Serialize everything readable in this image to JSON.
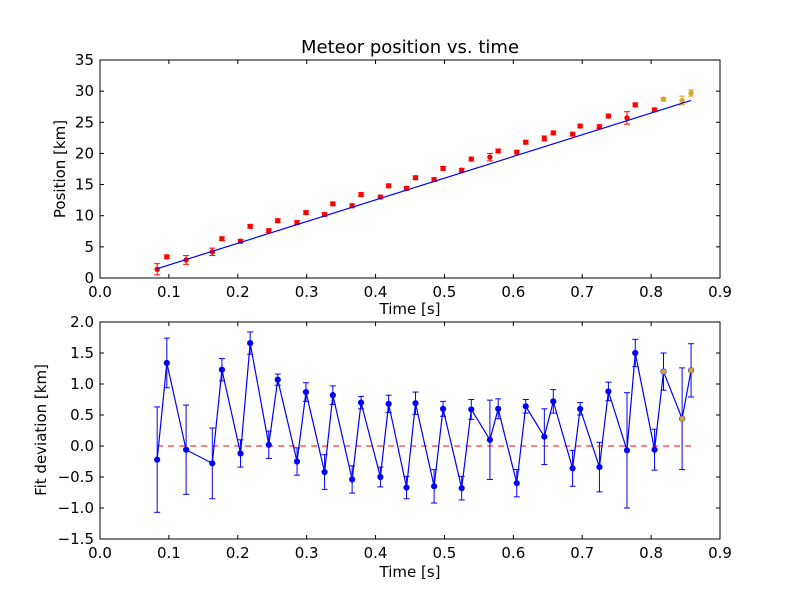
{
  "chart_data": [
    {
      "type": "scatter",
      "title": "Meteor position vs. time",
      "xlabel": "Time [s]",
      "ylabel": "Position [km]",
      "xlim": [
        0.0,
        0.9
      ],
      "ylim": [
        0,
        35
      ],
      "xticks": [
        "0.0",
        "0.1",
        "0.2",
        "0.3",
        "0.4",
        "0.5",
        "0.6",
        "0.7",
        "0.8",
        "0.9"
      ],
      "yticks": [
        "0",
        "5",
        "10",
        "15",
        "20",
        "25",
        "30",
        "35"
      ],
      "grid": false,
      "legend": "none",
      "series": [
        {
          "color": "#ff0000",
          "marker": "point",
          "x": [
            0.083,
            0.097,
            0.125,
            0.163,
            0.177,
            0.204,
            0.218,
            0.245,
            0.258,
            0.286,
            0.299,
            0.326,
            0.338,
            0.366,
            0.379,
            0.407,
            0.419,
            0.445,
            0.458,
            0.485,
            0.498,
            0.525,
            0.539,
            0.566,
            0.578,
            0.605,
            0.618,
            0.645,
            0.658,
            0.686,
            0.697,
            0.725,
            0.738,
            0.765,
            0.777,
            0.805
          ],
          "y": [
            1.4,
            3.4,
            2.9,
            4.2,
            6.3,
            5.9,
            8.3,
            7.6,
            9.2,
            8.9,
            10.5,
            10.2,
            11.9,
            11.6,
            13.4,
            13.0,
            14.8,
            14.4,
            16.1,
            15.8,
            17.6,
            17.3,
            19.1,
            19.4,
            20.4,
            20.2,
            21.8,
            22.4,
            23.3,
            23.1,
            24.4,
            24.3,
            26.0,
            25.7,
            27.8,
            27.0
          ],
          "yerr": [
            0.9,
            0.3,
            0.7,
            0.6,
            0.3,
            0.3,
            0.3,
            0.3,
            0.3,
            0.3,
            0.3,
            0.3,
            0.3,
            0.3,
            0.3,
            0.3,
            0.3,
            0.3,
            0.3,
            0.3,
            0.3,
            0.3,
            0.3,
            0.6,
            0.3,
            0.3,
            0.3,
            0.4,
            0.3,
            0.3,
            0.3,
            0.3,
            0.3,
            1.0,
            0.3,
            0.3
          ]
        },
        {
          "color": "#daa520",
          "marker": "point",
          "x": [
            0.818,
            0.845,
            0.858
          ],
          "y": [
            28.7,
            28.5,
            29.7
          ],
          "yerr": [
            0.3,
            0.7,
            0.5
          ]
        },
        {
          "color": "#0000ff",
          "marker": "line",
          "x": [
            0.083,
            0.858
          ],
          "y": [
            1.5,
            28.5
          ]
        }
      ]
    },
    {
      "type": "line",
      "title": "",
      "xlabel": "Time [s]",
      "ylabel": "Fit deviation [km]",
      "xlim": [
        0.0,
        0.9
      ],
      "ylim": [
        -1.5,
        2.0
      ],
      "xticks": [
        "0.0",
        "0.1",
        "0.2",
        "0.3",
        "0.4",
        "0.5",
        "0.6",
        "0.7",
        "0.8",
        "0.9"
      ],
      "yticks": [
        "−1.5",
        "−1.0",
        "−0.5",
        "0.0",
        "0.5",
        "1.0",
        "1.5",
        "2.0"
      ],
      "grid": false,
      "legend": "none",
      "reference_line": {
        "y": 0.0,
        "color": "#ff0000",
        "style": "dashed"
      },
      "series": [
        {
          "color": "#0000ff",
          "marker": "dot",
          "x": [
            0.083,
            0.097,
            0.125,
            0.163,
            0.177,
            0.204,
            0.218,
            0.245,
            0.258,
            0.286,
            0.299,
            0.326,
            0.338,
            0.366,
            0.379,
            0.407,
            0.419,
            0.445,
            0.458,
            0.485,
            0.498,
            0.525,
            0.539,
            0.566,
            0.578,
            0.605,
            0.618,
            0.645,
            0.658,
            0.686,
            0.697,
            0.725,
            0.738,
            0.765,
            0.777,
            0.805,
            0.818,
            0.845,
            0.858
          ],
          "y": [
            -0.22,
            1.34,
            -0.06,
            -0.28,
            1.23,
            -0.12,
            1.66,
            0.02,
            1.07,
            -0.25,
            0.87,
            -0.42,
            0.82,
            -0.54,
            0.7,
            -0.5,
            0.68,
            -0.67,
            0.69,
            -0.65,
            0.6,
            -0.68,
            0.59,
            0.1,
            0.6,
            -0.6,
            0.64,
            0.15,
            0.72,
            -0.36,
            0.6,
            -0.34,
            0.88,
            -0.07,
            1.5,
            -0.06,
            1.2,
            0.44,
            1.22
          ],
          "yerr": [
            0.85,
            0.4,
            0.72,
            0.57,
            0.18,
            0.22,
            0.18,
            0.22,
            0.09,
            0.22,
            0.15,
            0.28,
            0.15,
            0.22,
            0.1,
            0.16,
            0.14,
            0.18,
            0.18,
            0.27,
            0.12,
            0.19,
            0.16,
            0.64,
            0.16,
            0.22,
            0.11,
            0.45,
            0.19,
            0.29,
            0.1,
            0.4,
            0.15,
            0.93,
            0.22,
            0.33,
            0.3,
            0.82,
            0.43
          ]
        },
        {
          "color": "#daa520",
          "marker": "point",
          "x": [
            0.818,
            0.845,
            0.858
          ],
          "y": [
            1.2,
            0.44,
            1.22
          ]
        }
      ]
    }
  ]
}
